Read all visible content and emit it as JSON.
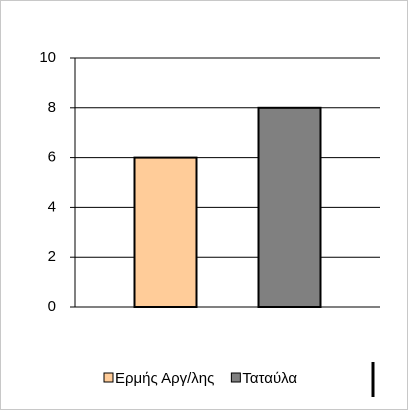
{
  "chart_data": {
    "type": "bar",
    "categories": [
      null
    ],
    "series": [
      {
        "name": "Ερμής Αργ/λης",
        "color": "#ffcc99",
        "values": [
          6
        ]
      },
      {
        "name": "Ταταύλα",
        "color": "#808080",
        "values": [
          8
        ]
      }
    ],
    "ylim": [
      0,
      10
    ],
    "yticks": [
      0,
      2,
      4,
      6,
      8,
      10
    ],
    "grid": true,
    "legend": "bottom"
  }
}
